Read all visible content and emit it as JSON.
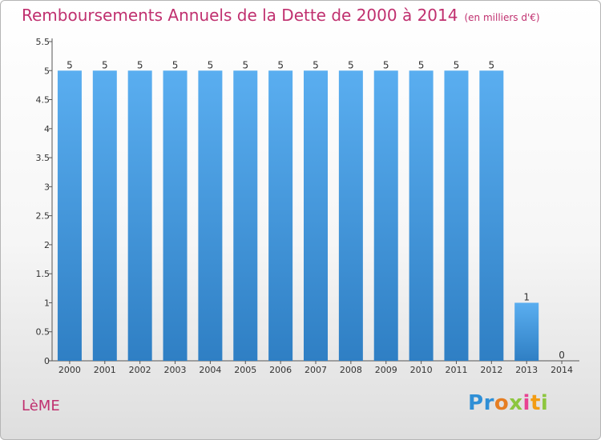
{
  "header": {
    "title": "Remboursements Annuels de la Dette de 2000 à 2014",
    "unit": "(en milliers d'€)"
  },
  "footer": {
    "commune": "LèME",
    "logo_letters": [
      "P",
      "r",
      "o",
      "x",
      "i",
      "t",
      "i"
    ],
    "logo_colors": [
      "#2f8fd6",
      "#2f8fd6",
      "#e67e22",
      "#8dc63f",
      "#e84393",
      "#f39c12",
      "#8dc63f"
    ]
  },
  "colors": {
    "title": "#c0306f",
    "bar_top": "#5aaef0",
    "bar_bottom": "#2f7fc4"
  },
  "chart_data": {
    "type": "bar",
    "title": "Remboursements Annuels de la Dette de 2000 à 2014",
    "xlabel": "",
    "ylabel": "",
    "categories": [
      "2000",
      "2001",
      "2002",
      "2003",
      "2004",
      "2005",
      "2006",
      "2007",
      "2008",
      "2009",
      "2010",
      "2011",
      "2012",
      "2013",
      "2014"
    ],
    "values": [
      5,
      5,
      5,
      5,
      5,
      5,
      5,
      5,
      5,
      5,
      5,
      5,
      5,
      1,
      0
    ],
    "ylim": [
      0,
      5.5
    ],
    "yticks": [
      0,
      0.5,
      1,
      1.5,
      2,
      2.5,
      3,
      3.5,
      4,
      4.5,
      5,
      5.5
    ],
    "ytick_labels": [
      "0",
      "0.5",
      "1",
      "1.5",
      "2",
      "2.5",
      "3",
      "3.5",
      "4",
      "4.5",
      "5",
      "5.5"
    ],
    "grid": false,
    "legend": "none"
  }
}
